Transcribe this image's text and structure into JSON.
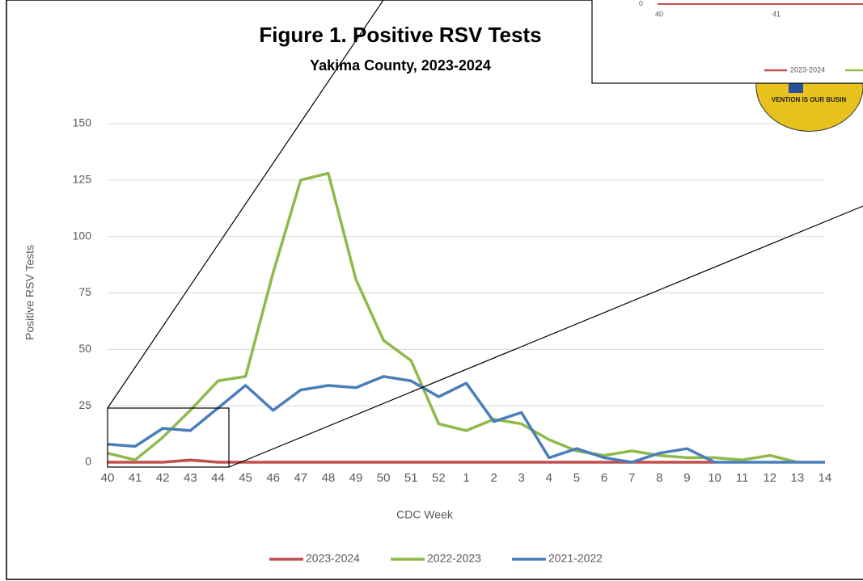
{
  "chart_data": {
    "type": "line",
    "title": "Figure 1. Positive RSV Tests",
    "subtitle": "Yakima County, 2023-2024",
    "y_label": "Positive RSV Tests",
    "x_label": "CDC Week",
    "categories": [
      "40",
      "41",
      "42",
      "43",
      "44",
      "45",
      "46",
      "47",
      "48",
      "49",
      "50",
      "51",
      "52",
      "1",
      "2",
      "3",
      "4",
      "5",
      "6",
      "7",
      "8",
      "9",
      "10",
      "11",
      "12",
      "13",
      "14"
    ],
    "ylim": [
      0,
      150
    ],
    "yticks": [
      0,
      25,
      50,
      75,
      100,
      125,
      150
    ],
    "grid": true,
    "series": [
      {
        "name": "2023-2024",
        "color": "#c0504d",
        "values": [
          0,
          0,
          0,
          1,
          0,
          0,
          0,
          0,
          0,
          0,
          0,
          0,
          0,
          0,
          0,
          0,
          0,
          0,
          0,
          0,
          0,
          0,
          0,
          null,
          null,
          null,
          null
        ]
      },
      {
        "name": "2022-2023",
        "color": "#8fba4a",
        "values": [
          4,
          1,
          11,
          23,
          36,
          38,
          84,
          125,
          128,
          81,
          54,
          45,
          17,
          14,
          19,
          17,
          10,
          5,
          3,
          5,
          3,
          2,
          2,
          1,
          3,
          0,
          null
        ]
      },
      {
        "name": "2021-2022",
        "color": "#4a7ebb",
        "values": [
          8,
          7,
          15,
          14,
          24,
          34,
          23,
          32,
          34,
          33,
          38,
          36,
          29,
          35,
          18,
          22,
          2,
          6,
          2,
          0,
          4,
          6,
          0,
          0,
          0,
          0,
          0
        ]
      }
    ]
  },
  "inset": {
    "ytick": "0",
    "xticks": [
      "40",
      "41"
    ],
    "legend": "2023-2024"
  },
  "logo_text": "VENTION IS OUR BUSIN"
}
